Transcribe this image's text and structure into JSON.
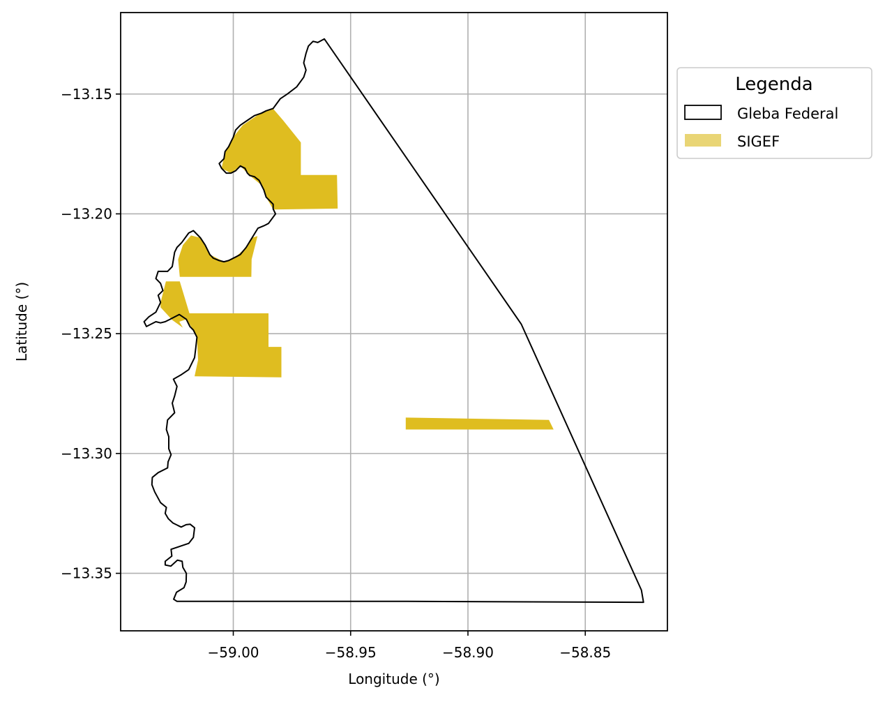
{
  "chart_data": {
    "type": "map",
    "xlabel": "Longitude (°)",
    "ylabel": "Latitude (°)",
    "xlim": [
      -59.048,
      -58.815
    ],
    "ylim": [
      -13.374,
      -13.116
    ],
    "x_ticks": [
      -59.0,
      -58.95,
      -58.9,
      -58.85
    ],
    "x_tick_labels": [
      "−59.00",
      "−58.95",
      "−58.90",
      "−58.85"
    ],
    "y_ticks": [
      -13.15,
      -13.2,
      -13.25,
      -13.3,
      -13.35
    ],
    "y_tick_labels": [
      "−13.15",
      "−13.20",
      "−13.25",
      "−13.30",
      "−13.35"
    ],
    "grid": true,
    "legend": {
      "title": "Legenda",
      "placement": "outside-right-top",
      "entries": [
        {
          "label": "Gleba Federal",
          "style": "outline",
          "edge_color": "#000000",
          "fill": "none"
        },
        {
          "label": "SIGEF",
          "style": "fill",
          "color": "#dfbd20"
        }
      ]
    },
    "layers": [
      {
        "name": "Gleba Federal",
        "color": "#000000",
        "fill": "none",
        "polygons": [
          [
            [
              -58.9612,
              -13.127
            ],
            [
              -58.8773,
              -13.246
            ],
            [
              -58.8261,
              -13.357
            ],
            [
              -58.8252,
              -13.3621
            ],
            [
              -58.926,
              -13.3617
            ],
            [
              -59.024,
              -13.3617
            ],
            [
              -59.0254,
              -13.3608
            ],
            [
              -59.0242,
              -13.3579
            ],
            [
              -59.021,
              -13.356
            ],
            [
              -59.0201,
              -13.3536
            ],
            [
              -59.02,
              -13.35
            ],
            [
              -59.0215,
              -13.3475
            ],
            [
              -59.0218,
              -13.345
            ],
            [
              -59.0238,
              -13.3445
            ],
            [
              -59.0266,
              -13.347
            ],
            [
              -59.029,
              -13.3465
            ],
            [
              -59.029,
              -13.345
            ],
            [
              -59.0262,
              -13.3428
            ],
            [
              -59.0265,
              -13.34
            ],
            [
              -59.022,
              -13.3385
            ],
            [
              -59.019,
              -13.3375
            ],
            [
              -59.017,
              -13.335
            ],
            [
              -59.0165,
              -13.331
            ],
            [
              -59.0184,
              -13.3295
            ],
            [
              -59.0201,
              -13.3297
            ],
            [
              -59.0222,
              -13.3307
            ],
            [
              -59.0257,
              -13.329
            ],
            [
              -59.0277,
              -13.3272
            ],
            [
              -59.029,
              -13.325
            ],
            [
              -59.0285,
              -13.3225
            ],
            [
              -59.031,
              -13.3205
            ],
            [
              -59.0335,
              -13.316
            ],
            [
              -59.0347,
              -13.313
            ],
            [
              -59.0345,
              -13.31
            ],
            [
              -59.032,
              -13.308
            ],
            [
              -59.028,
              -13.306
            ],
            [
              -59.0278,
              -13.3035
            ],
            [
              -59.0265,
              -13.3005
            ],
            [
              -59.0275,
              -13.298
            ],
            [
              -59.0275,
              -13.293
            ],
            [
              -59.0285,
              -13.29
            ],
            [
              -59.028,
              -13.286
            ],
            [
              -59.025,
              -13.283
            ],
            [
              -59.026,
              -13.279
            ],
            [
              -59.025,
              -13.276
            ],
            [
              -59.024,
              -13.272
            ],
            [
              -59.0255,
              -13.269
            ],
            [
              -59.022,
              -13.267
            ],
            [
              -59.019,
              -13.265
            ],
            [
              -59.0165,
              -13.26
            ],
            [
              -59.016,
              -13.256
            ],
            [
              -59.0155,
              -13.2515
            ],
            [
              -59.017,
              -13.2485
            ],
            [
              -59.0185,
              -13.247
            ],
            [
              -59.02,
              -13.244
            ],
            [
              -59.023,
              -13.242
            ],
            [
              -59.025,
              -13.243
            ],
            [
              -59.027,
              -13.244
            ],
            [
              -59.029,
              -13.245
            ],
            [
              -59.031,
              -13.2455
            ],
            [
              -59.033,
              -13.245
            ],
            [
              -59.037,
              -13.247
            ],
            [
              -59.038,
              -13.245
            ],
            [
              -59.036,
              -13.243
            ],
            [
              -59.033,
              -13.241
            ],
            [
              -59.031,
              -13.237
            ],
            [
              -59.032,
              -13.234
            ],
            [
              -59.03,
              -13.232
            ],
            [
              -59.031,
              -13.229
            ],
            [
              -59.033,
              -13.227
            ],
            [
              -59.032,
              -13.224
            ],
            [
              -59.028,
              -13.224
            ],
            [
              -59.026,
              -13.222
            ],
            [
              -59.0255,
              -13.219
            ],
            [
              -59.025,
              -13.216
            ],
            [
              -59.024,
              -13.214
            ],
            [
              -59.022,
              -13.212
            ],
            [
              -59.019,
              -13.208
            ],
            [
              -59.017,
              -13.207
            ],
            [
              -59.014,
              -13.21
            ],
            [
              -59.012,
              -13.213
            ],
            [
              -59.01,
              -13.217
            ],
            [
              -59.0085,
              -13.2185
            ],
            [
              -59.006,
              -13.2195
            ],
            [
              -59.004,
              -13.22
            ],
            [
              -59.002,
              -13.2195
            ],
            [
              -58.999,
              -13.218
            ],
            [
              -58.997,
              -13.217
            ],
            [
              -58.9945,
              -13.214
            ],
            [
              -58.992,
              -13.21
            ],
            [
              -58.9895,
              -13.206
            ],
            [
              -58.987,
              -13.205
            ],
            [
              -58.985,
              -13.204
            ],
            [
              -58.982,
              -13.2
            ],
            [
              -58.983,
              -13.198
            ],
            [
              -58.983,
              -13.196
            ],
            [
              -58.986,
              -13.193
            ],
            [
              -58.987,
              -13.19
            ],
            [
              -58.988,
              -13.188
            ],
            [
              -58.989,
              -13.186
            ],
            [
              -58.991,
              -13.1845
            ],
            [
              -58.993,
              -13.184
            ],
            [
              -58.994,
              -13.183
            ],
            [
              -58.995,
              -13.181
            ],
            [
              -58.997,
              -13.18
            ],
            [
              -58.999,
              -13.182
            ],
            [
              -59.001,
              -13.183
            ],
            [
              -59.003,
              -13.183
            ],
            [
              -59.005,
              -13.181
            ],
            [
              -59.006,
              -13.179
            ],
            [
              -59.004,
              -13.177
            ],
            [
              -59.0035,
              -13.174
            ],
            [
              -59.002,
              -13.172
            ],
            [
              -59.001,
              -13.17
            ],
            [
              -59.0,
              -13.168
            ],
            [
              -58.999,
              -13.165
            ],
            [
              -58.997,
              -13.163
            ],
            [
              -58.994,
              -13.161
            ],
            [
              -58.991,
              -13.159
            ],
            [
              -58.988,
              -13.158
            ],
            [
              -58.986,
              -13.157
            ],
            [
              -58.983,
              -13.156
            ],
            [
              -58.98,
              -13.152
            ],
            [
              -58.977,
              -13.15
            ],
            [
              -58.973,
              -13.147
            ],
            [
              -58.97,
              -13.143
            ],
            [
              -58.969,
              -13.14
            ],
            [
              -58.97,
              -13.137
            ],
            [
              -58.969,
              -13.133
            ],
            [
              -58.968,
              -13.13
            ],
            [
              -58.966,
              -13.128
            ],
            [
              -58.964,
              -13.1285
            ],
            [
              -58.9612,
              -13.127
            ]
          ]
        ]
      },
      {
        "name": "SIGEF",
        "color": "#dfbd20",
        "polygons": [
          [
            [
              -58.9833,
              -13.1558
            ],
            [
              -58.9788,
              -13.1609
            ],
            [
              -58.9712,
              -13.1702
            ],
            [
              -58.9712,
              -13.1838
            ],
            [
              -58.9558,
              -13.1838
            ],
            [
              -58.9555,
              -13.1978
            ],
            [
              -58.983,
              -13.1982
            ],
            [
              -58.986,
              -13.193
            ],
            [
              -58.988,
              -13.188
            ],
            [
              -58.993,
              -13.184
            ],
            [
              -58.997,
              -13.18
            ],
            [
              -59.001,
              -13.183
            ],
            [
              -59.005,
              -13.181
            ],
            [
              -59.0035,
              -13.174
            ],
            [
              -59.0,
              -13.168
            ],
            [
              -58.996,
              -13.163
            ],
            [
              -58.99,
              -13.159
            ],
            [
              -58.9833,
              -13.1558
            ]
          ],
          [
            [
              -59.018,
              -13.209
            ],
            [
              -59.014,
              -13.21
            ],
            [
              -59.01,
              -13.217
            ],
            [
              -59.004,
              -13.22
            ],
            [
              -58.999,
              -13.218
            ],
            [
              -58.9945,
              -13.214
            ],
            [
              -58.992,
              -13.21
            ],
            [
              -58.9897,
              -13.2093
            ],
            [
              -58.9922,
              -13.219
            ],
            [
              -58.9923,
              -13.2263
            ],
            [
              -59.0228,
              -13.2263
            ],
            [
              -59.0235,
              -13.219
            ],
            [
              -59.0215,
              -13.213
            ],
            [
              -59.018,
              -13.209
            ]
          ],
          [
            [
              -59.0287,
              -13.2282
            ],
            [
              -59.0228,
              -13.2282
            ],
            [
              -59.0187,
              -13.2415
            ],
            [
              -58.985,
              -13.2415
            ],
            [
              -58.985,
              -13.2555
            ],
            [
              -58.9795,
              -13.2555
            ],
            [
              -58.9795,
              -13.2682
            ],
            [
              -59.0165,
              -13.2678
            ],
            [
              -59.015,
              -13.261
            ],
            [
              -59.0155,
              -13.2515
            ],
            [
              -59.017,
              -13.2485
            ],
            [
              -59.02,
              -13.244
            ],
            [
              -59.023,
              -13.245
            ],
            [
              -59.0215,
              -13.2475
            ],
            [
              -59.026,
              -13.2443
            ],
            [
              -59.031,
              -13.239
            ],
            [
              -59.031,
              -13.237
            ],
            [
              -59.0287,
              -13.2282
            ]
          ],
          [
            [
              -58.9265,
              -13.285
            ],
            [
              -58.8655,
              -13.286
            ],
            [
              -58.8635,
              -13.29
            ],
            [
              -58.9265,
              -13.29
            ],
            [
              -58.9265,
              -13.285
            ]
          ]
        ]
      }
    ]
  }
}
